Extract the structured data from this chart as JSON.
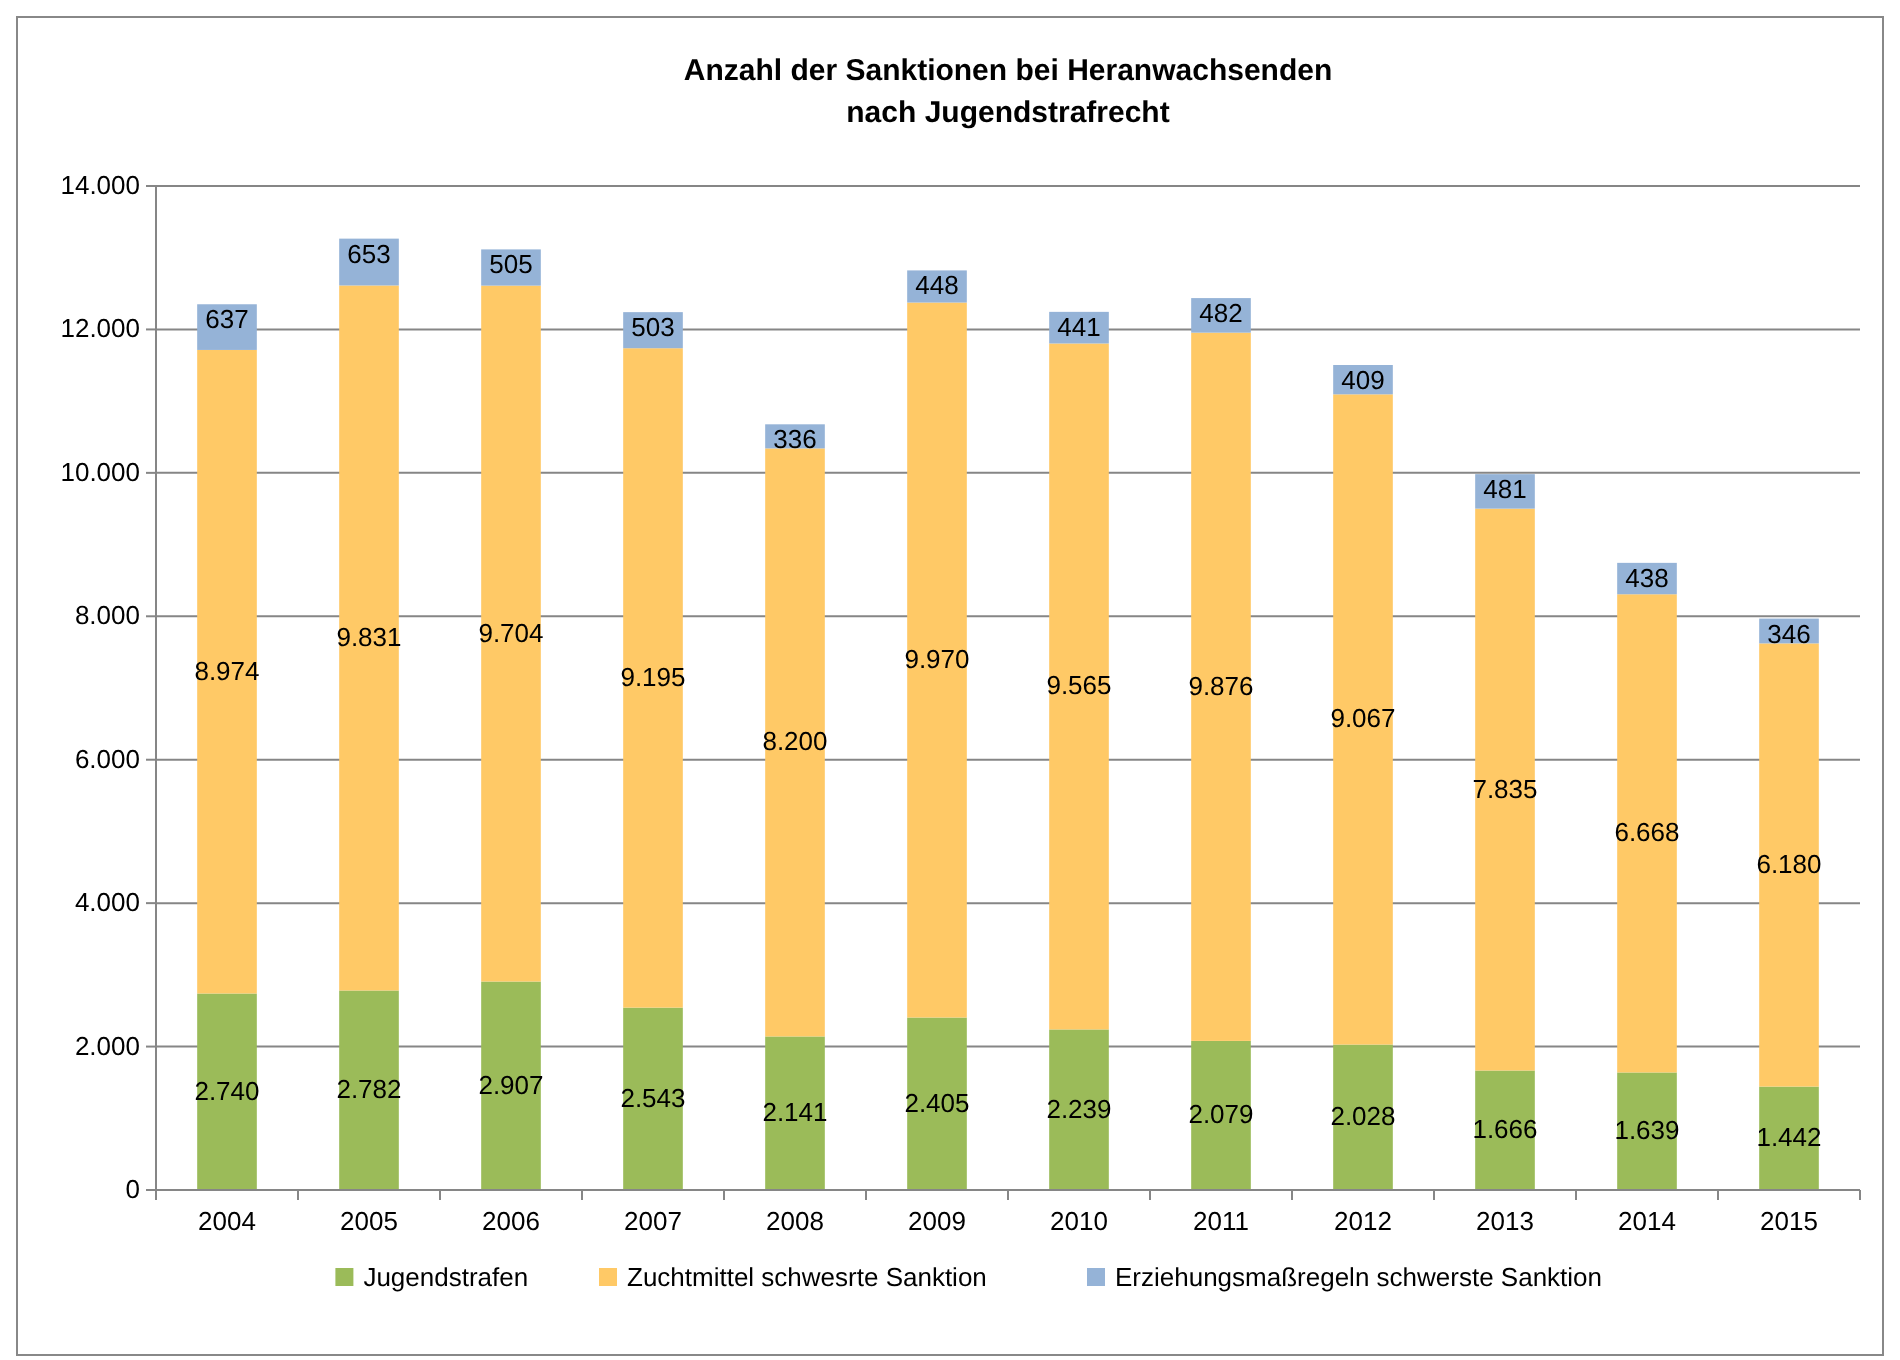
{
  "chart_data": {
    "type": "bar",
    "title": "Anzahl der Sanktionen bei Heranwachsenden\nnach Jugendstrafrecht",
    "stacked": true,
    "grid": "y",
    "legend": "bottom",
    "categories": [
      "2004",
      "2005",
      "2006",
      "2007",
      "2008",
      "2009",
      "2010",
      "2011",
      "2012",
      "2013",
      "2014",
      "2015"
    ],
    "ylim": [
      0,
      14000
    ],
    "yticks": [
      {
        "value": 0,
        "label": "0"
      },
      {
        "value": 2000,
        "label": "2.000"
      },
      {
        "value": 4000,
        "label": "4.000"
      },
      {
        "value": 6000,
        "label": "6.000"
      },
      {
        "value": 8000,
        "label": "8.000"
      },
      {
        "value": 10000,
        "label": "10.000"
      },
      {
        "value": 12000,
        "label": "12.000"
      },
      {
        "value": 14000,
        "label": "14.000"
      }
    ],
    "series": [
      {
        "name": "Jugendstrafen",
        "color": "#9bbb59",
        "values": [
          2740,
          2782,
          2907,
          2543,
          2141,
          2405,
          2239,
          2079,
          2028,
          1666,
          1639,
          1442
        ],
        "value_labels": [
          "2.740",
          "2.782",
          "2.907",
          "2.543",
          "2.141",
          "2.405",
          "2.239",
          "2.079",
          "2.028",
          "1.666",
          "1.639",
          "1.442"
        ]
      },
      {
        "name": "Zuchtmittel schwesrte Sanktion",
        "color": "#ffc966",
        "values": [
          8974,
          9831,
          9704,
          9195,
          8200,
          9970,
          9565,
          9876,
          9067,
          7835,
          6668,
          6180
        ],
        "value_labels": [
          "8.974",
          "9.831",
          "9.704",
          "9.195",
          "8.200",
          "9.970",
          "9.565",
          "9.876",
          "9.067",
          "7.835",
          "6.668",
          "6.180"
        ]
      },
      {
        "name": "Erziehungsmaßregeln schwerste Sanktion",
        "color": "#95b3d7",
        "values": [
          637,
          653,
          505,
          503,
          336,
          448,
          441,
          482,
          409,
          481,
          438,
          346
        ],
        "value_labels": [
          "637",
          "653",
          "505",
          "503",
          "336",
          "448",
          "441",
          "482",
          "409",
          "481",
          "438",
          "346"
        ]
      }
    ]
  }
}
